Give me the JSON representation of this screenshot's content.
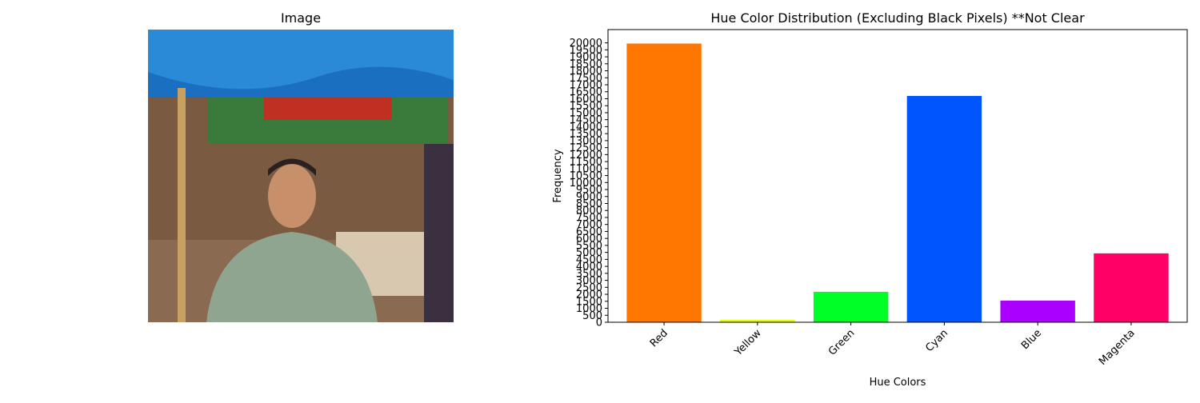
{
  "image_panel": {
    "title": "Image"
  },
  "chart_data": {
    "type": "bar",
    "title": "Hue Color Distribution (Excluding Black Pixels) **Not Clear",
    "x_label": "Hue Colors",
    "y_label": "Frequency",
    "categories": [
      "Red",
      "Yellow",
      "Green",
      "Cyan",
      "Blue",
      "Magenta"
    ],
    "values": [
      19950,
      170,
      2180,
      16200,
      1550,
      4930
    ],
    "colors": [
      "#ff7700",
      "#e8ff00",
      "#00ff26",
      "#0055ff",
      "#aa00ff",
      "#ff0066"
    ],
    "ylim": [
      0,
      20950
    ],
    "yticks": [
      0,
      500,
      1000,
      1500,
      2000,
      2500,
      3000,
      3500,
      4000,
      4500,
      5000,
      5500,
      6000,
      6500,
      7000,
      7500,
      8000,
      8500,
      9000,
      9500,
      10000,
      10500,
      11000,
      11500,
      12000,
      12500,
      13000,
      13500,
      14000,
      14500,
      15000,
      15500,
      16000,
      16500,
      17000,
      17500,
      18000,
      18500,
      19000,
      19500,
      20000
    ],
    "grid": false
  }
}
